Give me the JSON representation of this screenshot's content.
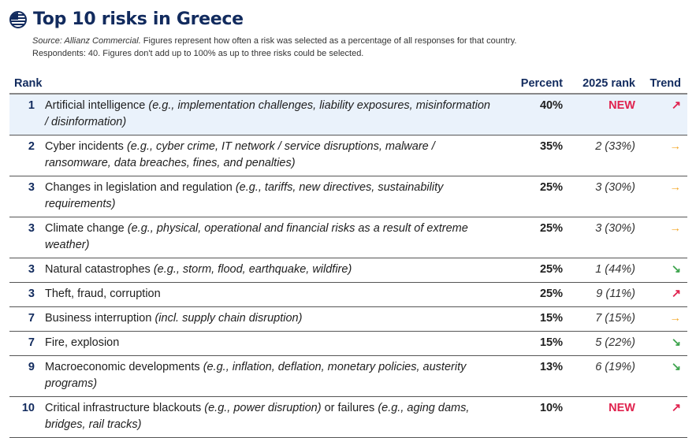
{
  "title": "Top 10 risks in Greece",
  "source_label": "Source: Allianz Commercial.",
  "subtitle_line1": " Figures represent how often a risk was selected as a percentage of all responses for that country.",
  "subtitle_line2": "Respondents: 40. Figures don't add up to 100% as up to three risks could be selected.",
  "headers": {
    "rank": "Rank",
    "percent": "Percent",
    "prev": "2025 rank",
    "trend": "Trend"
  },
  "colors": {
    "navy": "#122b5e",
    "new": "#e0224e",
    "up": "#e0224e",
    "flat": "#f5a623",
    "down": "#3da44d"
  },
  "rows": [
    {
      "rank": "1",
      "name": "Artificial intelligence",
      "detail": "(e.g., implementation challenges, liability exposures, misinformation / disinformation)",
      "extra": "",
      "extra_detail": "",
      "percent": "40%",
      "prev": "NEW",
      "trend": "↗",
      "trend_type": "up"
    },
    {
      "rank": "2",
      "name": "Cyber incidents",
      "detail": "(e.g., cyber crime, IT network / service disruptions, malware / ransomware, data breaches, fines, and penalties)",
      "extra": "",
      "extra_detail": "",
      "percent": "35%",
      "prev": "2 (33%)",
      "trend": "→",
      "trend_type": "flat"
    },
    {
      "rank": "3",
      "name": "Changes in legislation and regulation",
      "detail": "(e.g., tariffs, new directives, sustainability requirements)",
      "extra": "",
      "extra_detail": "",
      "percent": "25%",
      "prev": "3 (30%)",
      "trend": "→",
      "trend_type": "flat"
    },
    {
      "rank": "3",
      "name": "Climate change",
      "detail": "(e.g., physical, operational and financial risks as a result of extreme weather)",
      "extra": "",
      "extra_detail": "",
      "percent": "25%",
      "prev": "3 (30%)",
      "trend": "→",
      "trend_type": "flat"
    },
    {
      "rank": "3",
      "name": "Natural catastrophes",
      "detail": "(e.g., storm, flood, earthquake, wildfire)",
      "extra": "",
      "extra_detail": "",
      "percent": "25%",
      "prev": "1 (44%)",
      "trend": "↘",
      "trend_type": "down"
    },
    {
      "rank": "3",
      "name": "Theft, fraud, corruption",
      "detail": "",
      "extra": "",
      "extra_detail": "",
      "percent": "25%",
      "prev": "9 (11%)",
      "trend": "↗",
      "trend_type": "up"
    },
    {
      "rank": "7",
      "name": "Business interruption",
      "detail": "(incl. supply chain disruption)",
      "extra": "",
      "extra_detail": "",
      "percent": "15%",
      "prev": "7 (15%)",
      "trend": "→",
      "trend_type": "flat"
    },
    {
      "rank": "7",
      "name": "Fire, explosion",
      "detail": "",
      "extra": "",
      "extra_detail": "",
      "percent": "15%",
      "prev": "5 (22%)",
      "trend": "↘",
      "trend_type": "down"
    },
    {
      "rank": "9",
      "name": "Macroeconomic developments",
      "detail": "(e.g., inflation, deflation, monetary policies, austerity programs)",
      "extra": "",
      "extra_detail": "",
      "percent": "13%",
      "prev": "6 (19%)",
      "trend": "↘",
      "trend_type": "down"
    },
    {
      "rank": "10",
      "name": "Critical infrastructure blackouts",
      "detail": "(e.g., power disruption)",
      "extra": " or failures ",
      "extra_detail": "(e.g., aging dams, bridges, rail tracks)",
      "percent": "10%",
      "prev": "NEW",
      "trend": "↗",
      "trend_type": "up"
    }
  ]
}
